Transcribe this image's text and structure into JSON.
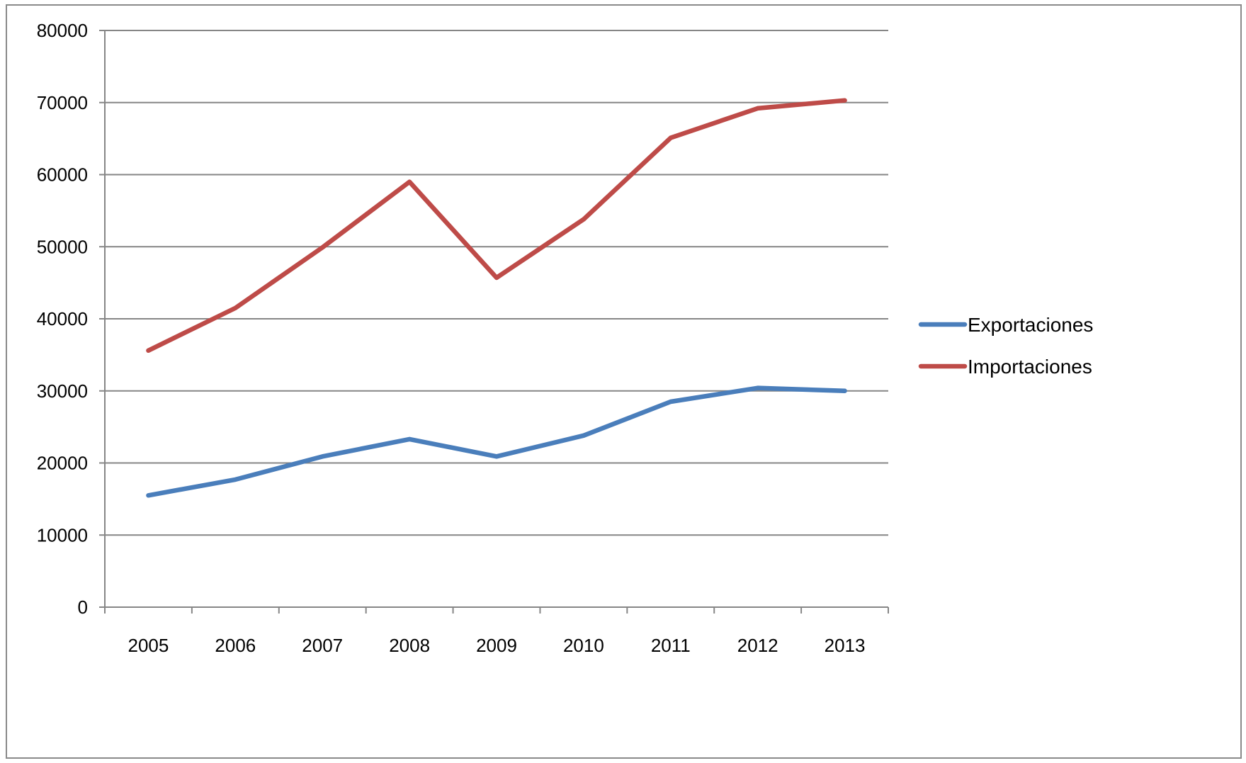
{
  "chart_data": {
    "type": "line",
    "title": "",
    "xlabel": "",
    "ylabel": "",
    "categories": [
      "2005",
      "2006",
      "2007",
      "2008",
      "2009",
      "2010",
      "2011",
      "2012",
      "2013"
    ],
    "ylim": [
      0,
      80000
    ],
    "yticks": [
      "0",
      "10000",
      "20000",
      "30000",
      "40000",
      "50000",
      "60000",
      "70000",
      "80000"
    ],
    "grid": true,
    "legend_position": "right",
    "series": [
      {
        "name": "Exportaciones",
        "color": "#4a7ebb",
        "values": [
          15500,
          17700,
          20900,
          23300,
          20900,
          23800,
          28500,
          30400,
          30000
        ]
      },
      {
        "name": "Importaciones",
        "color": "#be4b48",
        "values": [
          35600,
          41500,
          49900,
          59000,
          45700,
          53800,
          65100,
          69200,
          70300
        ]
      }
    ]
  }
}
